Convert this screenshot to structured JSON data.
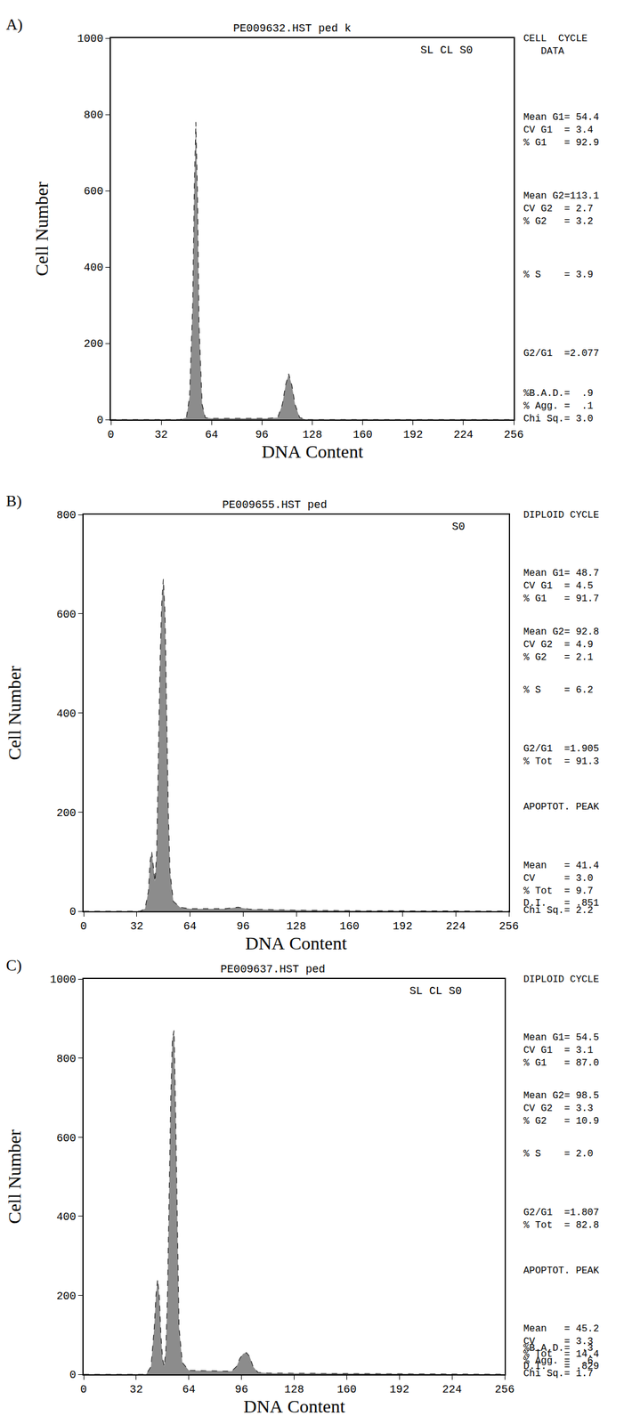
{
  "chart_data": [
    {
      "type": "line",
      "label": "A)",
      "title": "PE009632.HST ped k",
      "subtitle": "SL CL S0",
      "x_label": "DNA Content",
      "y_label": "Cell Number",
      "color": "#8c8c8c",
      "line_style": "dashed",
      "grid": false,
      "xlim": [
        0,
        256
      ],
      "ylim": [
        0,
        1000
      ],
      "xticks": [
        0,
        32,
        64,
        96,
        128,
        160,
        192,
        224,
        256
      ],
      "yticks": [
        0,
        200,
        400,
        600,
        800,
        1000
      ],
      "x": [
        0,
        44,
        48,
        50,
        52,
        53,
        54,
        55,
        56,
        58,
        60,
        64,
        100,
        106,
        109,
        111,
        113,
        115,
        117,
        120,
        124,
        256
      ],
      "values": [
        0,
        0,
        5,
        60,
        300,
        600,
        780,
        600,
        250,
        40,
        5,
        3,
        3,
        5,
        40,
        90,
        120,
        90,
        40,
        5,
        0,
        0
      ],
      "annotations": [
        [
          "CELL  CYCLE",
          "   DATA"
        ],
        [
          "Mean G1= 54.4",
          "CV G1  = 3.4",
          "% G1   = 92.9"
        ],
        [
          "Mean G2=113.1",
          "CV G2  = 2.7",
          "% G2   = 3.2"
        ],
        [
          "% S    = 3.9"
        ],
        [
          "G2/G1  =2.077"
        ],
        [
          "%B.A.D.=  .9",
          "% Agg. =  .1",
          "Chi Sq.= 3.0"
        ]
      ]
    },
    {
      "type": "line",
      "label": "B)",
      "title": "PE009655.HST ped",
      "subtitle": "S0",
      "x_label": "DNA Content",
      "y_label": "Cell Number",
      "color": "#8c8c8c",
      "line_style": "dashed",
      "grid": false,
      "xlim": [
        0,
        256
      ],
      "ylim": [
        0,
        800
      ],
      "xticks": [
        0,
        32,
        64,
        96,
        128,
        160,
        192,
        224,
        256
      ],
      "yticks": [
        0,
        200,
        400,
        600,
        800
      ],
      "x": [
        0,
        34,
        37,
        39,
        40,
        41,
        42,
        43,
        44,
        45,
        46,
        47,
        48,
        49,
        50,
        51,
        52,
        54,
        58,
        64,
        85,
        93,
        100,
        128,
        160,
        256
      ],
      "values": [
        0,
        0,
        5,
        40,
        100,
        120,
        90,
        60,
        120,
        300,
        500,
        620,
        670,
        600,
        400,
        200,
        80,
        20,
        8,
        5,
        5,
        8,
        4,
        2,
        1,
        0
      ],
      "annotations": [
        [
          "DIPLOID CYCLE"
        ],
        [
          "Mean G1= 48.7",
          "CV G1  = 4.5",
          "% G1   = 91.7"
        ],
        [
          "Mean G2= 92.8",
          "CV G2  = 4.9",
          "% G2   = 2.1"
        ],
        [
          "% S    = 6.2"
        ],
        [
          "G2/G1  =1.905",
          "% Tot  = 91.3"
        ],
        [
          "APOPTOT. PEAK"
        ],
        [
          "Mean   = 41.4",
          "CV     = 3.0",
          "% Tot  = 9.7",
          "D.I.   = .851"
        ],
        [
          "Chi Sq.= 2.2"
        ]
      ]
    },
    {
      "type": "line",
      "label": "C)",
      "title": "PE009637.HST ped",
      "subtitle": "SL CL S0",
      "x_label": "DNA Content",
      "y_label": "Cell Number",
      "color": "#8c8c8c",
      "line_style": "dashed",
      "grid": false,
      "xlim": [
        0,
        256
      ],
      "ylim": [
        0,
        1000
      ],
      "xticks": [
        0,
        32,
        64,
        96,
        128,
        160,
        192,
        224,
        256
      ],
      "yticks": [
        0,
        200,
        400,
        600,
        800,
        1000
      ],
      "x": [
        0,
        38,
        41,
        43,
        44,
        45,
        46,
        47,
        48,
        49,
        50,
        51,
        52,
        53,
        54,
        55,
        56,
        57,
        58,
        60,
        64,
        90,
        93,
        95,
        97,
        99,
        101,
        103,
        106,
        112,
        160,
        256
      ],
      "values": [
        0,
        0,
        20,
        120,
        200,
        240,
        200,
        100,
        40,
        20,
        60,
        200,
        450,
        700,
        850,
        870,
        650,
        350,
        120,
        30,
        10,
        8,
        20,
        40,
        52,
        55,
        45,
        20,
        5,
        3,
        2,
        0
      ],
      "annotations": [
        [
          "DIPLOID CYCLE"
        ],
        [
          "Mean G1= 54.5",
          "CV G1  = 3.1",
          "% G1   = 87.0"
        ],
        [
          "Mean G2= 98.5",
          "CV G2  = 3.3",
          "% G2   = 10.9"
        ],
        [
          "% S    = 2.0"
        ],
        [
          "G2/G1  =1.807",
          "% Tot  = 82.8"
        ],
        [
          "APOPTOT. PEAK"
        ],
        [
          "Mean   = 45.2",
          "CV     = 3.3",
          "% Tot  = 14.4",
          "D.I.   = .829"
        ],
        [
          "%B.A.D.=  .3",
          "% Agg. =  .6",
          "Chi Sq.= 1.7"
        ]
      ]
    }
  ]
}
